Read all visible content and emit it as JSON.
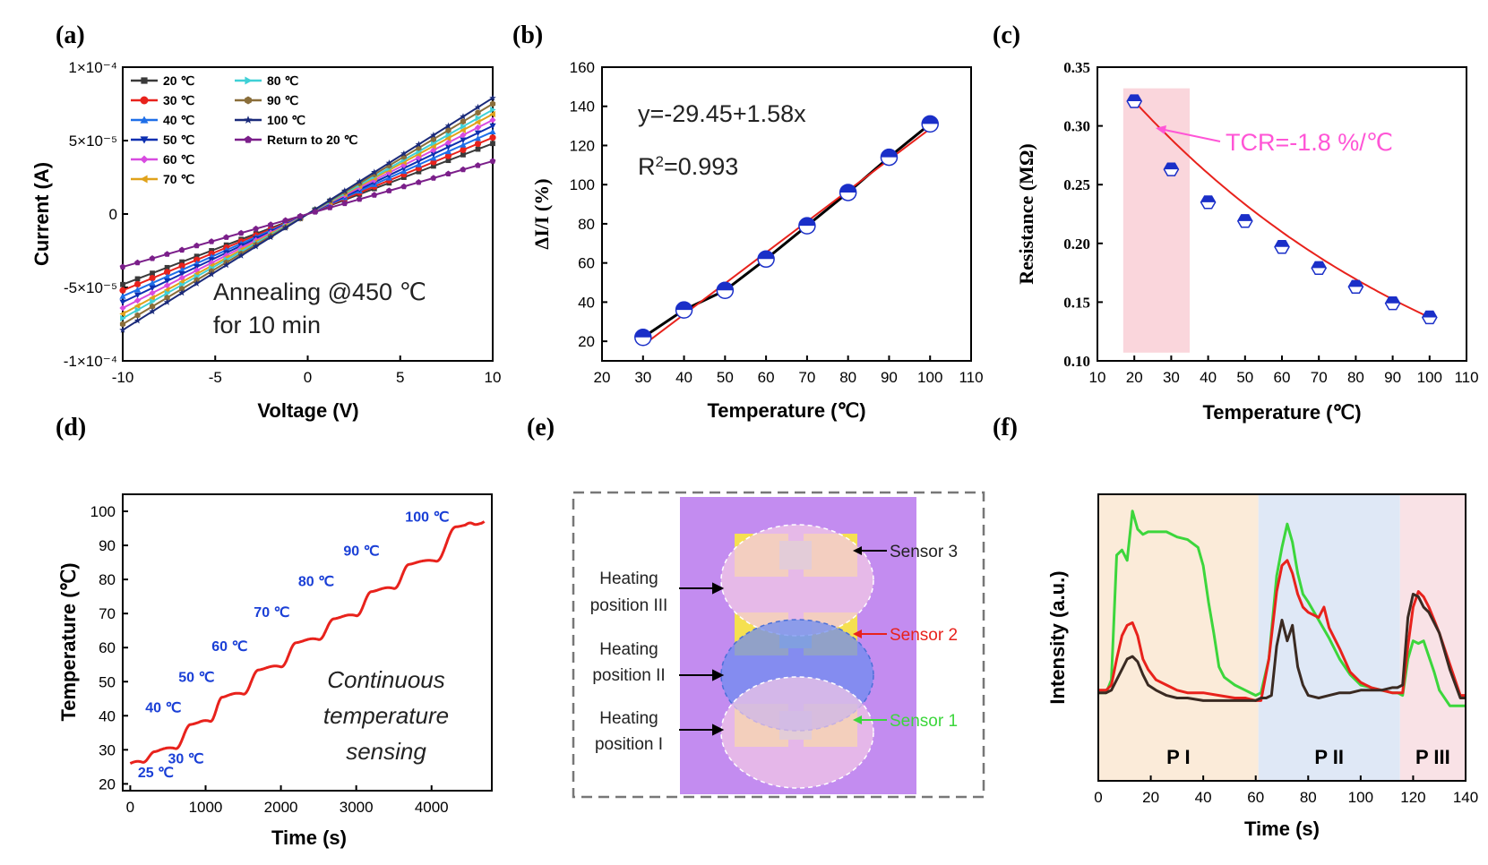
{
  "panels": {
    "a": {
      "label": "(a)"
    },
    "b": {
      "label": "(b)"
    },
    "c": {
      "label": "(c)"
    },
    "d": {
      "label": "(d)"
    },
    "e": {
      "label": "(e)"
    },
    "f": {
      "label": "(f)"
    }
  },
  "chart_data": [
    {
      "id": "a",
      "type": "line",
      "xlabel": "Voltage (V)",
      "ylabel": "Current (A)",
      "xlim": [
        -10,
        10
      ],
      "ylim": [
        -0.0001,
        0.0001
      ],
      "xticks": [
        "-10",
        "-5",
        "0",
        "5",
        "10"
      ],
      "xtick_values": [
        -10,
        -5,
        0,
        5,
        10
      ],
      "yticks": [
        "1×10⁻⁴",
        "5×10⁻⁵",
        "0",
        "-5×10⁻⁵",
        "-1×10⁻⁴"
      ],
      "ytick_values": [
        0.0001,
        5e-05,
        0,
        -5e-05,
        -0.0001
      ],
      "annotation_line1": "Annealing @450 ℃",
      "annotation_line2": "for 10 min",
      "series": [
        {
          "name": "20 ℃",
          "color": "#3a3a3a",
          "marker": "square",
          "slope": 4.8e-06
        },
        {
          "name": "30 ℃",
          "color": "#e8221c",
          "marker": "circle",
          "slope": 5.2e-06
        },
        {
          "name": "40 ℃",
          "color": "#1f6fe8",
          "marker": "triangle-up",
          "slope": 5.6e-06
        },
        {
          "name": "50 ℃",
          "color": "#0c2fb0",
          "marker": "triangle-down",
          "slope": 6e-06
        },
        {
          "name": "60 ℃",
          "color": "#d84be0",
          "marker": "diamond",
          "slope": 6.4e-06
        },
        {
          "name": "70 ℃",
          "color": "#e0a21a",
          "marker": "triangle-left",
          "slope": 6.8e-06
        },
        {
          "name": "80 ℃",
          "color": "#3fd0d6",
          "marker": "triangle-right",
          "slope": 7.1e-06
        },
        {
          "name": "90 ℃",
          "color": "#8a6e3a",
          "marker": "hexagon",
          "slope": 7.5e-06
        },
        {
          "name": "100 ℃",
          "color": "#1a2a7a",
          "marker": "star",
          "slope": 7.9e-06
        },
        {
          "name": "Return to 20 ℃",
          "color": "#7b1f8a",
          "marker": "pentagon",
          "slope": 3.6e-06
        }
      ]
    },
    {
      "id": "b",
      "type": "scatter",
      "xlabel": "Temperature (℃)",
      "ylabel": "ΔI/I (%)",
      "xlim": [
        20,
        110
      ],
      "ylim": [
        10,
        160
      ],
      "xticks": [
        "20",
        "30",
        "40",
        "50",
        "60",
        "70",
        "80",
        "90",
        "100",
        "110"
      ],
      "yticks": [
        "20",
        "40",
        "60",
        "80",
        "100",
        "120",
        "140",
        "160"
      ],
      "x": [
        30,
        40,
        50,
        60,
        70,
        80,
        90,
        100
      ],
      "y": [
        22,
        36,
        46,
        62,
        79,
        96,
        114,
        131
      ],
      "fit_equation": "y=-29.45+1.58x",
      "r2_prefix": "R",
      "r2_sup": "2",
      "r2_value": "=0.993",
      "fit": {
        "intercept": -29.45,
        "slope": 1.58,
        "color": "#e8221c"
      },
      "marker_color": "#1a2fc8"
    },
    {
      "id": "c",
      "type": "scatter",
      "xlabel": "Temperature (℃)",
      "ylabel": "Resistance (MΩ)",
      "xlim": [
        10,
        110
      ],
      "ylim": [
        0.1,
        0.35
      ],
      "xticks": [
        "10",
        "20",
        "30",
        "40",
        "50",
        "60",
        "70",
        "80",
        "90",
        "100",
        "110"
      ],
      "yticks": [
        "0.10",
        "0.15",
        "0.20",
        "0.25",
        "0.30",
        "0.35"
      ],
      "x": [
        20,
        30,
        40,
        50,
        60,
        70,
        80,
        90,
        100
      ],
      "y": [
        0.321,
        0.263,
        0.235,
        0.219,
        0.197,
        0.179,
        0.163,
        0.149,
        0.137
      ],
      "annotation": "TCR=-1.8 %/℃",
      "highlight_x_range": [
        17,
        35
      ],
      "fit_color": "#e8221c",
      "marker_color": "#1a2fc8"
    },
    {
      "id": "d",
      "type": "line",
      "xlabel": "Time (s)",
      "ylabel": "Temperature (℃)",
      "xlim": [
        -100,
        4800
      ],
      "ylim": [
        18,
        105
      ],
      "xticks": [
        "0",
        "1000",
        "2000",
        "3000",
        "4000"
      ],
      "yticks": [
        "20",
        "30",
        "40",
        "50",
        "60",
        "70",
        "80",
        "90",
        "100"
      ],
      "color": "#e8221c",
      "annotation_lines": [
        "Continuous",
        "temperature",
        "sensing"
      ],
      "step_labels": [
        {
          "text": "25 ℃",
          "t": 100,
          "temp": 22
        },
        {
          "text": "30 ℃",
          "t": 500,
          "temp": 26
        },
        {
          "text": "40 ℃",
          "t": 200,
          "temp": 41
        },
        {
          "text": "50 ℃",
          "t": 640,
          "temp": 50
        },
        {
          "text": "60 ℃",
          "t": 1080,
          "temp": 59
        },
        {
          "text": "70 ℃",
          "t": 1640,
          "temp": 69
        },
        {
          "text": "80 ℃",
          "t": 2230,
          "temp": 78
        },
        {
          "text": "90 ℃",
          "t": 2830,
          "temp": 87
        },
        {
          "text": "100 ℃",
          "t": 3650,
          "temp": 97
        }
      ],
      "steps": [
        {
          "t0": 0,
          "t1": 400,
          "from": 26,
          "to": 30
        },
        {
          "t0": 400,
          "t1": 900,
          "from": 30,
          "to": 38
        },
        {
          "t0": 900,
          "t1": 1300,
          "from": 38,
          "to": 46
        },
        {
          "t0": 1300,
          "t1": 1800,
          "from": 46,
          "to": 54
        },
        {
          "t0": 1800,
          "t1": 2300,
          "from": 54,
          "to": 62
        },
        {
          "t0": 2300,
          "t1": 2800,
          "from": 62,
          "to": 69
        },
        {
          "t0": 2800,
          "t1": 3300,
          "from": 69,
          "to": 77
        },
        {
          "t0": 3300,
          "t1": 3800,
          "from": 77,
          "to": 85
        },
        {
          "t0": 3800,
          "t1": 4450,
          "from": 85,
          "to": 96
        },
        {
          "t0": 4450,
          "t1": 4700,
          "from": 96,
          "to": 97
        }
      ]
    },
    {
      "id": "f",
      "type": "line",
      "xlabel": "Time (s)",
      "ylabel": "Intensity (a.u.)",
      "xlim": [
        0,
        140
      ],
      "ylim": [
        0,
        1
      ],
      "xticks": [
        "0",
        "20",
        "40",
        "60",
        "80",
        "100",
        "120",
        "140"
      ],
      "phases": [
        {
          "label": "P I",
          "x0": 0,
          "x1": 61,
          "color": "#fbebd9"
        },
        {
          "label": "P II",
          "x0": 61,
          "x1": 115,
          "color": "#dfe8f6"
        },
        {
          "label": "P III",
          "x0": 115,
          "x1": 140,
          "color": "#f9e2e6"
        }
      ],
      "series": [
        {
          "name": "Sensor 1",
          "color": "#3cd63c",
          "x": [
            0,
            3,
            5,
            7,
            9,
            11,
            13,
            15,
            17,
            19,
            22,
            26,
            30,
            34,
            38,
            40,
            42,
            44,
            46,
            48,
            52,
            56,
            60,
            62,
            65,
            68,
            70,
            72,
            74,
            76,
            78,
            80,
            84,
            88,
            92,
            96,
            100,
            104,
            108,
            112,
            114,
            116,
            118,
            120,
            122,
            124,
            126,
            128,
            130,
            134,
            138,
            140
          ],
          "y": [
            0.27,
            0.27,
            0.32,
            0.8,
            0.82,
            0.78,
            0.97,
            0.9,
            0.88,
            0.89,
            0.89,
            0.89,
            0.87,
            0.86,
            0.83,
            0.76,
            0.62,
            0.5,
            0.37,
            0.33,
            0.3,
            0.28,
            0.26,
            0.27,
            0.4,
            0.72,
            0.83,
            0.92,
            0.85,
            0.73,
            0.65,
            0.62,
            0.55,
            0.48,
            0.4,
            0.34,
            0.3,
            0.29,
            0.28,
            0.27,
            0.27,
            0.26,
            0.4,
            0.47,
            0.46,
            0.47,
            0.41,
            0.35,
            0.28,
            0.22,
            0.22,
            0.22
          ]
        },
        {
          "name": "Sensor 2",
          "color": "#e8221c",
          "x": [
            0,
            3,
            5,
            7,
            9,
            11,
            13,
            15,
            17,
            19,
            22,
            26,
            30,
            34,
            40,
            46,
            52,
            56,
            60,
            62,
            65,
            68,
            70,
            72,
            74,
            76,
            78,
            80,
            84,
            86,
            88,
            92,
            96,
            100,
            104,
            108,
            112,
            114,
            116,
            118,
            120,
            122,
            124,
            126,
            128,
            130,
            134,
            138,
            140
          ],
          "y": [
            0.28,
            0.28,
            0.3,
            0.4,
            0.49,
            0.53,
            0.54,
            0.49,
            0.4,
            0.36,
            0.32,
            0.3,
            0.28,
            0.27,
            0.27,
            0.26,
            0.25,
            0.25,
            0.24,
            0.24,
            0.4,
            0.66,
            0.76,
            0.78,
            0.73,
            0.65,
            0.6,
            0.58,
            0.56,
            0.6,
            0.52,
            0.44,
            0.35,
            0.31,
            0.29,
            0.28,
            0.27,
            0.27,
            0.27,
            0.45,
            0.6,
            0.66,
            0.64,
            0.6,
            0.55,
            0.5,
            0.38,
            0.26,
            0.26
          ]
        },
        {
          "name": "Sensor 3",
          "color": "#3a2a22",
          "x": [
            0,
            3,
            5,
            7,
            9,
            11,
            13,
            15,
            17,
            19,
            22,
            26,
            30,
            34,
            40,
            46,
            52,
            56,
            60,
            62,
            64,
            66,
            68,
            70,
            72,
            74,
            76,
            78,
            80,
            84,
            88,
            92,
            96,
            100,
            104,
            108,
            112,
            114,
            116,
            118,
            120,
            122,
            124,
            126,
            128,
            130,
            134,
            138,
            140
          ],
          "y": [
            0.27,
            0.27,
            0.28,
            0.32,
            0.36,
            0.4,
            0.41,
            0.39,
            0.34,
            0.3,
            0.28,
            0.26,
            0.25,
            0.25,
            0.24,
            0.24,
            0.24,
            0.24,
            0.24,
            0.25,
            0.25,
            0.26,
            0.45,
            0.55,
            0.47,
            0.53,
            0.37,
            0.3,
            0.26,
            0.25,
            0.26,
            0.27,
            0.27,
            0.28,
            0.28,
            0.28,
            0.29,
            0.29,
            0.3,
            0.56,
            0.65,
            0.64,
            0.6,
            0.58,
            0.54,
            0.5,
            0.36,
            0.25,
            0.25
          ]
        }
      ]
    }
  ],
  "diagram_e": {
    "sensor_labels": [
      {
        "text": "Sensor 3",
        "color": "#222222"
      },
      {
        "text": "Sensor 2",
        "color": "#e8221c"
      },
      {
        "text": "Sensor 1",
        "color": "#3cd63c"
      }
    ],
    "heating_labels": [
      {
        "line1": "Heating",
        "line2": "position III"
      },
      {
        "line1": "Heating",
        "line2": "position II"
      },
      {
        "line1": "Heating",
        "line2": "position I"
      }
    ],
    "substrate_color": "#c38cf0",
    "electrode_color": "#f5e050"
  }
}
